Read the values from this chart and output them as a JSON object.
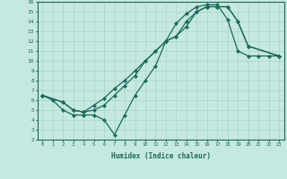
{
  "xlabel": "Humidex (Indice chaleur)",
  "xlim": [
    -0.5,
    23.5
  ],
  "ylim": [
    2,
    16
  ],
  "xticks": [
    0,
    1,
    2,
    3,
    4,
    5,
    6,
    7,
    8,
    9,
    10,
    11,
    12,
    13,
    14,
    15,
    16,
    17,
    18,
    19,
    20,
    21,
    22,
    23
  ],
  "yticks": [
    2,
    3,
    4,
    5,
    6,
    7,
    8,
    9,
    10,
    11,
    12,
    13,
    14,
    15,
    16
  ],
  "bg_color": "#c5e8e0",
  "grid_color": "#a8d4cc",
  "line_color": "#1a6b5a",
  "line1_x": [
    0,
    1,
    2,
    3,
    4,
    5,
    6,
    7,
    8,
    9,
    10,
    11,
    12,
    13,
    14,
    15,
    16,
    17,
    18,
    19,
    20,
    21,
    22,
    23
  ],
  "line1_y": [
    6.5,
    6.0,
    5.0,
    4.5,
    4.5,
    4.5,
    4.0,
    2.5,
    4.5,
    6.5,
    8.0,
    9.5,
    12.0,
    13.8,
    14.8,
    15.5,
    15.7,
    15.7,
    14.2,
    11.0,
    10.5,
    10.5,
    10.5,
    10.5
  ],
  "line2_x": [
    0,
    2,
    3,
    4,
    5,
    6,
    7,
    8,
    9,
    10,
    11,
    12,
    13,
    14,
    15,
    16,
    17,
    18,
    19,
    20,
    23
  ],
  "line2_y": [
    6.5,
    5.8,
    5.0,
    4.8,
    5.5,
    6.2,
    7.2,
    8.0,
    9.0,
    10.0,
    11.0,
    12.0,
    12.5,
    13.5,
    15.0,
    15.5,
    15.5,
    15.5,
    14.0,
    11.5,
    10.5
  ],
  "line3_x": [
    0,
    2,
    3,
    4,
    5,
    6,
    7,
    8,
    9,
    10,
    11,
    12,
    13,
    14,
    15,
    16,
    17,
    18,
    19,
    20,
    23
  ],
  "line3_y": [
    6.5,
    5.8,
    5.0,
    4.8,
    5.0,
    5.5,
    6.5,
    7.5,
    8.5,
    10.0,
    11.0,
    12.0,
    12.5,
    14.0,
    15.0,
    15.5,
    15.5,
    15.5,
    14.0,
    11.5,
    10.5
  ]
}
